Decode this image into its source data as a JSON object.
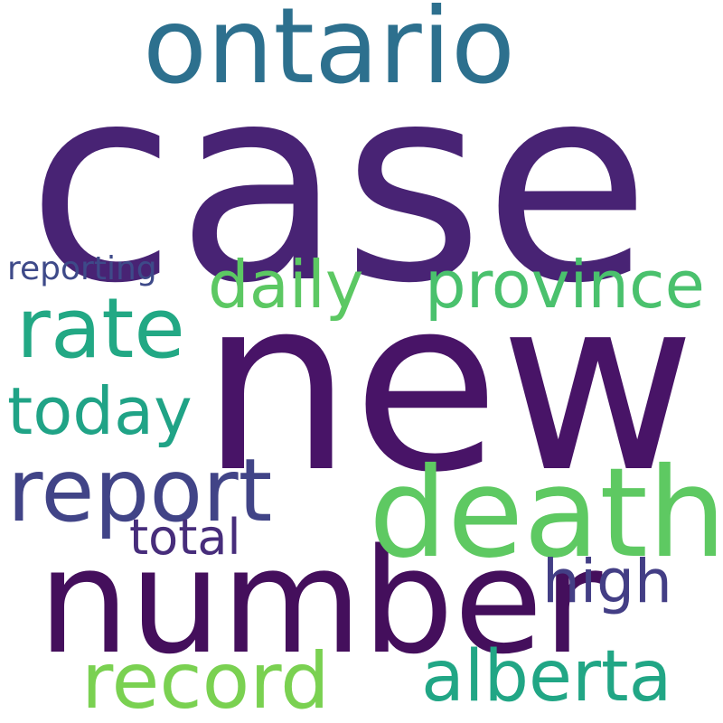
{
  "words": [
    {
      "id": "case",
      "text": "case",
      "color": "#482374"
    },
    {
      "id": "new",
      "text": "new",
      "color": "#481467"
    },
    {
      "id": "number",
      "text": "number",
      "color": "#440f5c"
    },
    {
      "id": "ontario",
      "text": "ontario",
      "color": "#2d708e"
    },
    {
      "id": "death",
      "text": "death",
      "color": "#5ec962"
    },
    {
      "id": "report",
      "text": "report",
      "color": "#414487"
    },
    {
      "id": "rate",
      "text": "rate",
      "color": "#22a884"
    },
    {
      "id": "province",
      "text": "province",
      "color": "#4ac16d"
    },
    {
      "id": "daily",
      "text": "daily",
      "color": "#5cc863"
    },
    {
      "id": "today",
      "text": "today",
      "color": "#20a386"
    },
    {
      "id": "record",
      "text": "record",
      "color": "#7ad151"
    },
    {
      "id": "alberta",
      "text": "alberta",
      "color": "#21a685"
    },
    {
      "id": "high",
      "text": "high",
      "color": "#433e85"
    },
    {
      "id": "total",
      "text": "total",
      "color": "#472d7b"
    },
    {
      "id": "reporting",
      "text": "reporting",
      "color": "#3e4a89"
    }
  ]
}
